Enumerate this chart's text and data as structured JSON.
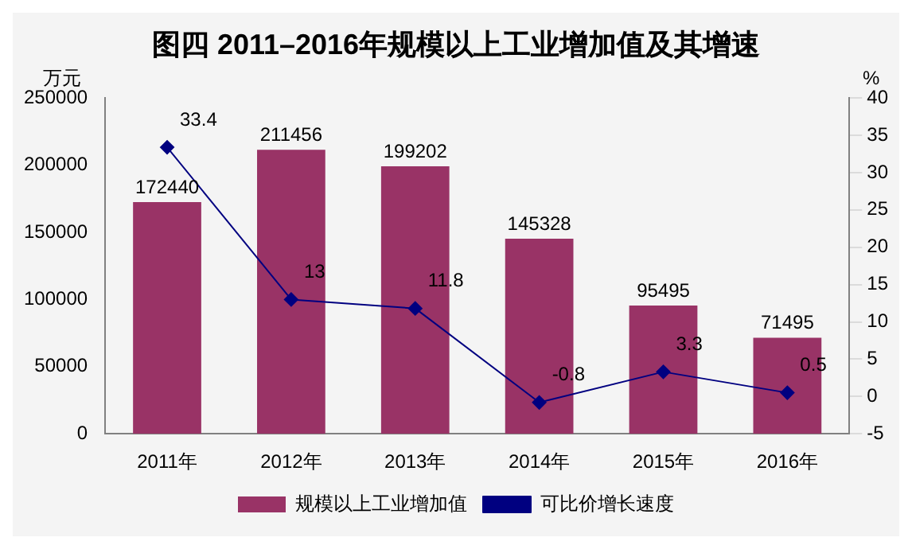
{
  "chart_data": {
    "type": "bar",
    "title": "图四 2011–2016年规模以上工业增加值及其增速",
    "ylabel": "万元",
    "y2label": "%",
    "categories": [
      "2011年",
      "2012年",
      "2013年",
      "2014年",
      "2015年",
      "2016年"
    ],
    "series": [
      {
        "name": "规模以上工业增加值",
        "color": "#993366",
        "values": [
          172440,
          211456,
          199202,
          145328,
          95495,
          71495
        ]
      },
      {
        "name": "可比价增长速度",
        "type": "line",
        "axis": "y2",
        "color": "#000080",
        "marker": "diamond",
        "values": [
          33.4,
          13,
          11.8,
          -0.8,
          3.3,
          0.5
        ]
      }
    ],
    "ylim": [
      0,
      250000
    ],
    "yticks": [
      0,
      50000,
      100000,
      150000,
      200000,
      250000
    ],
    "y2lim": [
      -5,
      40
    ],
    "y2ticks": [
      -5,
      0,
      5,
      10,
      15,
      20,
      25,
      30,
      35,
      40
    ],
    "data_labels": true,
    "grid": false,
    "legend": "bottom"
  }
}
